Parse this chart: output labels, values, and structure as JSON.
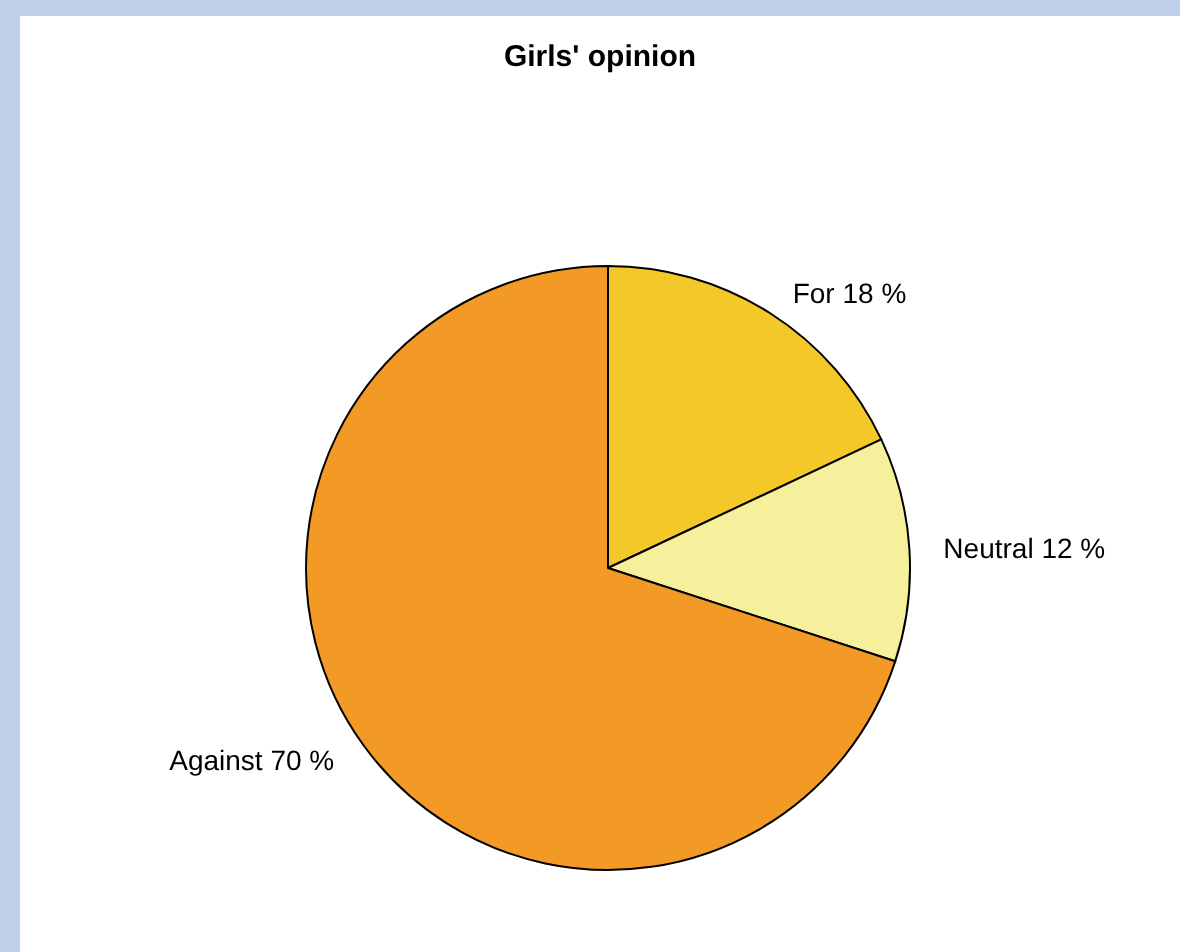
{
  "chart_data": {
    "type": "pie",
    "title": "Girls' opinion",
    "categories": [
      "For",
      "Neutral",
      "Against"
    ],
    "values": [
      18,
      12,
      70
    ],
    "value_labels": [
      "18 %",
      "12 %",
      "70 %"
    ],
    "colors": [
      "#f4c828",
      "#f6f09c",
      "#f39a26"
    ],
    "legend": false
  }
}
